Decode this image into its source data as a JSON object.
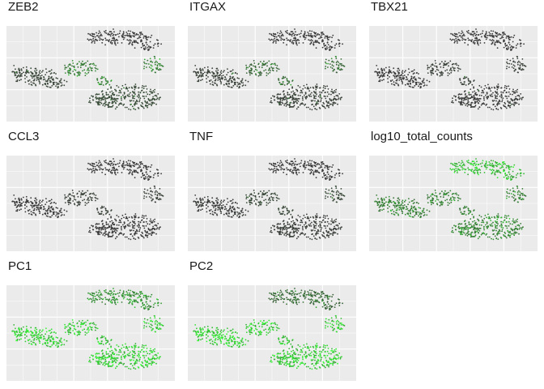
{
  "colors": {
    "panel_bg": "#ebebeb",
    "grid": "#ffffff",
    "low": "#3a3a3a",
    "high": "#33ff33",
    "title": "#1a1a1a"
  },
  "chart_data": [
    {
      "type": "scatter",
      "title": "ZEB2",
      "color_scale": "grey-to-green",
      "relative_expression": {
        "mid_cluster_patches": 0.45,
        "lower_right": 0.12,
        "top": 0.0,
        "left": 0.08
      },
      "grid": true,
      "legend": "none"
    },
    {
      "type": "scatter",
      "title": "ITGAX",
      "color_scale": "grey-to-green",
      "relative_expression": {
        "mid_cluster_patches": 0.3,
        "lower_right": 0.05,
        "top": 0.0,
        "left": 0.05
      },
      "grid": true,
      "legend": "none"
    },
    {
      "type": "scatter",
      "title": "TBX21",
      "color_scale": "grey-to-green",
      "relative_expression": {
        "mid_cluster_patches": 0.05,
        "lower_right": 0.02,
        "top": 0.0,
        "left": 0.0
      },
      "grid": true,
      "legend": "none"
    },
    {
      "type": "scatter",
      "title": "CCL3",
      "color_scale": "grey-to-green",
      "relative_expression": {
        "mid_cluster_patches": 0.05,
        "lower_right": 0.0,
        "top": 0.0,
        "left": 0.0
      },
      "grid": true,
      "legend": "none"
    },
    {
      "type": "scatter",
      "title": "TNF",
      "color_scale": "grey-to-green",
      "relative_expression": {
        "mid_cluster_patches": 0.1,
        "lower_right": 0.03,
        "top": 0.0,
        "left": 0.02
      },
      "grid": true,
      "legend": "none"
    },
    {
      "type": "scatter",
      "title": "log10_total_counts",
      "color_scale": "grey-to-green",
      "relative_expression": {
        "mid_cluster_patches": 0.45,
        "lower_right": 0.5,
        "top": 0.85,
        "left": 0.45
      },
      "grid": true,
      "legend": "none"
    },
    {
      "type": "scatter",
      "title": "PC1",
      "color_scale": "grey-to-green",
      "relative_expression": {
        "mid_cluster_patches": 0.9,
        "lower_right": 0.95,
        "top": 0.55,
        "left": 0.95
      },
      "grid": true,
      "legend": "none"
    },
    {
      "type": "scatter",
      "title": "PC2",
      "color_scale": "grey-to-green",
      "relative_expression": {
        "mid_cluster_patches": 0.9,
        "lower_right": 0.95,
        "top": 0.3,
        "left": 0.95
      },
      "grid": true,
      "legend": "none"
    }
  ]
}
